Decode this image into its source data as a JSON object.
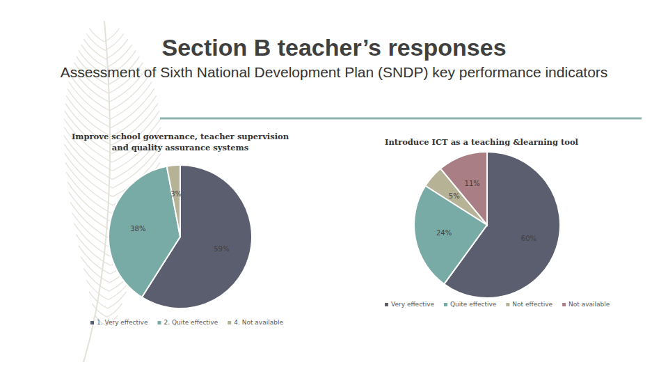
{
  "title": "Section B teacher’s responses",
  "subtitle": "Assessment of Sixth National Development Plan (SNDP) key performance indicators",
  "chart_data": [
    {
      "type": "pie",
      "title": "Improve school governance, teacher supervision and quality assurance systems",
      "categories": [
        "1. Very effective",
        "2. Quite effective",
        "4. Not available"
      ],
      "values": [
        59,
        38,
        3
      ],
      "value_labels": [
        "59%",
        "38%",
        "3%"
      ],
      "colors": [
        "#5b5e6e",
        "#79aba6",
        "#b6b295"
      ],
      "data_labels": true,
      "legend": "bottom"
    },
    {
      "type": "pie",
      "title": "Introduce ICT as a teaching &learning tool",
      "categories": [
        "Very effective",
        "Quite effective",
        "Not effective",
        "Not available"
      ],
      "values": [
        60,
        24,
        5,
        11
      ],
      "value_labels": [
        "60%",
        "24%",
        "5%",
        "11%"
      ],
      "colors": [
        "#5b5e6e",
        "#79aba6",
        "#b6b295",
        "#a97f85"
      ],
      "data_labels": true,
      "legend": "bottom"
    }
  ]
}
